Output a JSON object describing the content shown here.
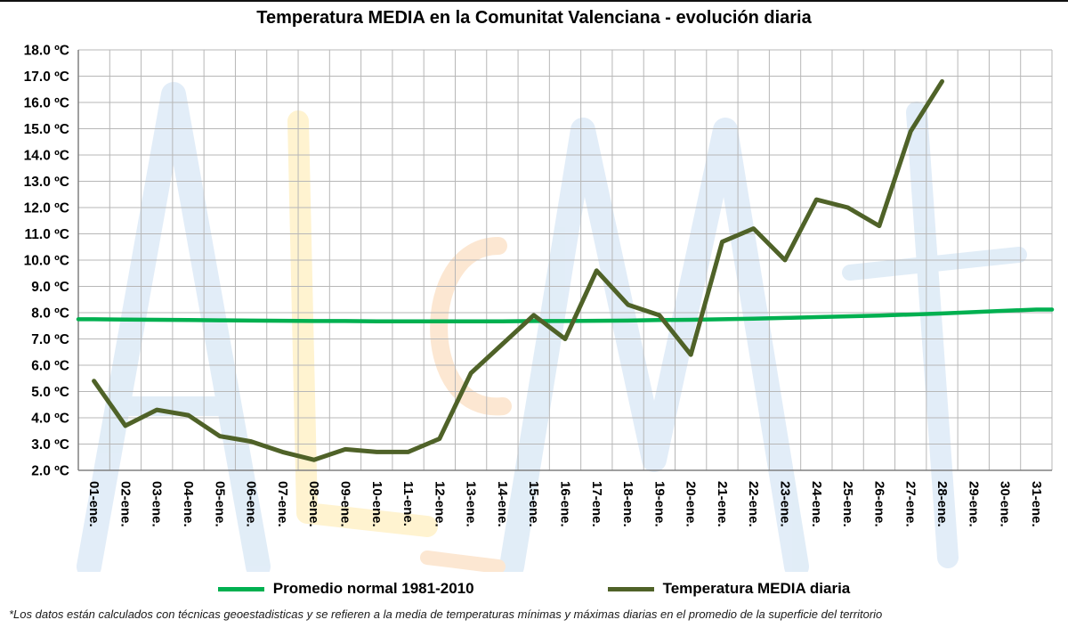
{
  "footnote": "*Los datos están calculados con técnicas geoestadisticas y se refieren a la media de temperaturas mínimas y máximas diarias en el promedio de la superficie del territorio",
  "chart_data": {
    "type": "line",
    "title": "Temperatura MEDIA en la Comunitat Valenciana - evolución diaria",
    "categories": [
      "01-ene.",
      "02-ene.",
      "03-ene.",
      "04-ene.",
      "05-ene.",
      "06-ene.",
      "07-ene.",
      "08-ene.",
      "09-ene.",
      "10-ene.",
      "11-ene.",
      "12-ene.",
      "13-ene.",
      "14-ene.",
      "15-ene.",
      "16-ene.",
      "17-ene.",
      "18-ene.",
      "19-ene.",
      "20-ene.",
      "21-ene.",
      "22-ene.",
      "23-ene.",
      "24-ene.",
      "25-ene.",
      "26-ene.",
      "27-ene.",
      "28-ene.",
      "29-ene.",
      "30-ene.",
      "31-ene."
    ],
    "series": [
      {
        "name": "Promedio normal 1981-2010",
        "color": "#00B050",
        "width": 4.5,
        "extend_to_edges": true,
        "values": [
          7.75,
          7.74,
          7.73,
          7.72,
          7.71,
          7.7,
          7.69,
          7.68,
          7.68,
          7.67,
          7.67,
          7.67,
          7.67,
          7.67,
          7.68,
          7.68,
          7.69,
          7.7,
          7.72,
          7.73,
          7.75,
          7.77,
          7.8,
          7.83,
          7.86,
          7.89,
          7.93,
          7.97,
          8.02,
          8.07,
          8.12
        ]
      },
      {
        "name": "Temperatura MEDIA diaria",
        "color": "#4F6228",
        "width": 5,
        "extend_to_edges": false,
        "values": [
          5.4,
          3.7,
          4.3,
          4.1,
          3.3,
          3.1,
          2.7,
          2.4,
          2.8,
          2.7,
          2.7,
          3.2,
          5.7,
          6.8,
          7.9,
          7.0,
          9.6,
          8.3,
          7.9,
          6.4,
          10.7,
          11.2,
          10.0,
          12.3,
          12.0,
          11.3,
          14.9,
          16.8,
          null,
          null,
          null
        ]
      }
    ],
    "y_axis": {
      "min": 2,
      "max": 18,
      "step": 1,
      "decimals": 1,
      "unit": " ºC"
    },
    "x_axis": {
      "label_rotation": 90
    },
    "grid": true,
    "legend_position": "bottom",
    "gridline_color": "#b7b7b7",
    "axis_line_color": "#808080",
    "watermark_colors": [
      "#9fc5e8",
      "#ffd966",
      "#f6b26c"
    ]
  }
}
